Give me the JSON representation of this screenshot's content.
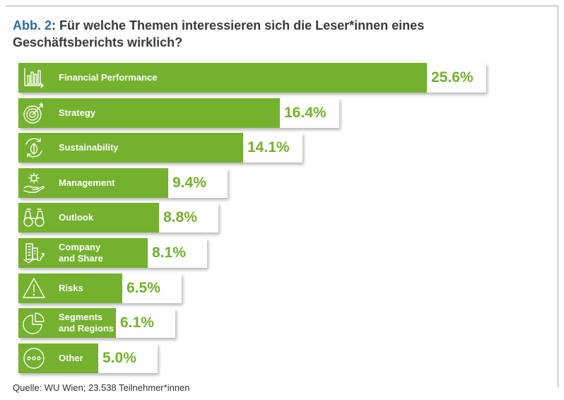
{
  "title": {
    "prefix": "Abb. 2",
    "text": ": Für welche Themen interessieren sich die Leser*innen eines Geschäftsberichts wirklich?"
  },
  "source": "Quelle: WU Wien; 23.538 Teilnehmer*innen",
  "colors": {
    "bar": "#74b12e",
    "title_prefix": "#2d6aa6"
  },
  "chart_data": {
    "type": "bar",
    "orientation": "horizontal",
    "categories": [
      "Financial Performance",
      "Strategy",
      "Sustainability",
      "Management",
      "Outlook",
      "Company\nand Share",
      "Risks",
      "Segments\nand Regions",
      "Other"
    ],
    "values": [
      25.6,
      16.4,
      14.1,
      9.4,
      8.8,
      8.1,
      6.5,
      6.1,
      5.0
    ],
    "value_labels": [
      "25.6%",
      "16.4%",
      "14.1%",
      "9.4%",
      "8.8%",
      "8.1%",
      "6.5%",
      "6.1%",
      "5.0%"
    ],
    "icons": [
      "bar-chart-icon",
      "target-icon",
      "leaf-cycle-icon",
      "gear-hand-icon",
      "binoculars-icon",
      "buildings-chart-icon",
      "warning-icon",
      "pie-chart-icon",
      "more-icon"
    ],
    "unit": "%",
    "grid": false,
    "legend": "none"
  }
}
